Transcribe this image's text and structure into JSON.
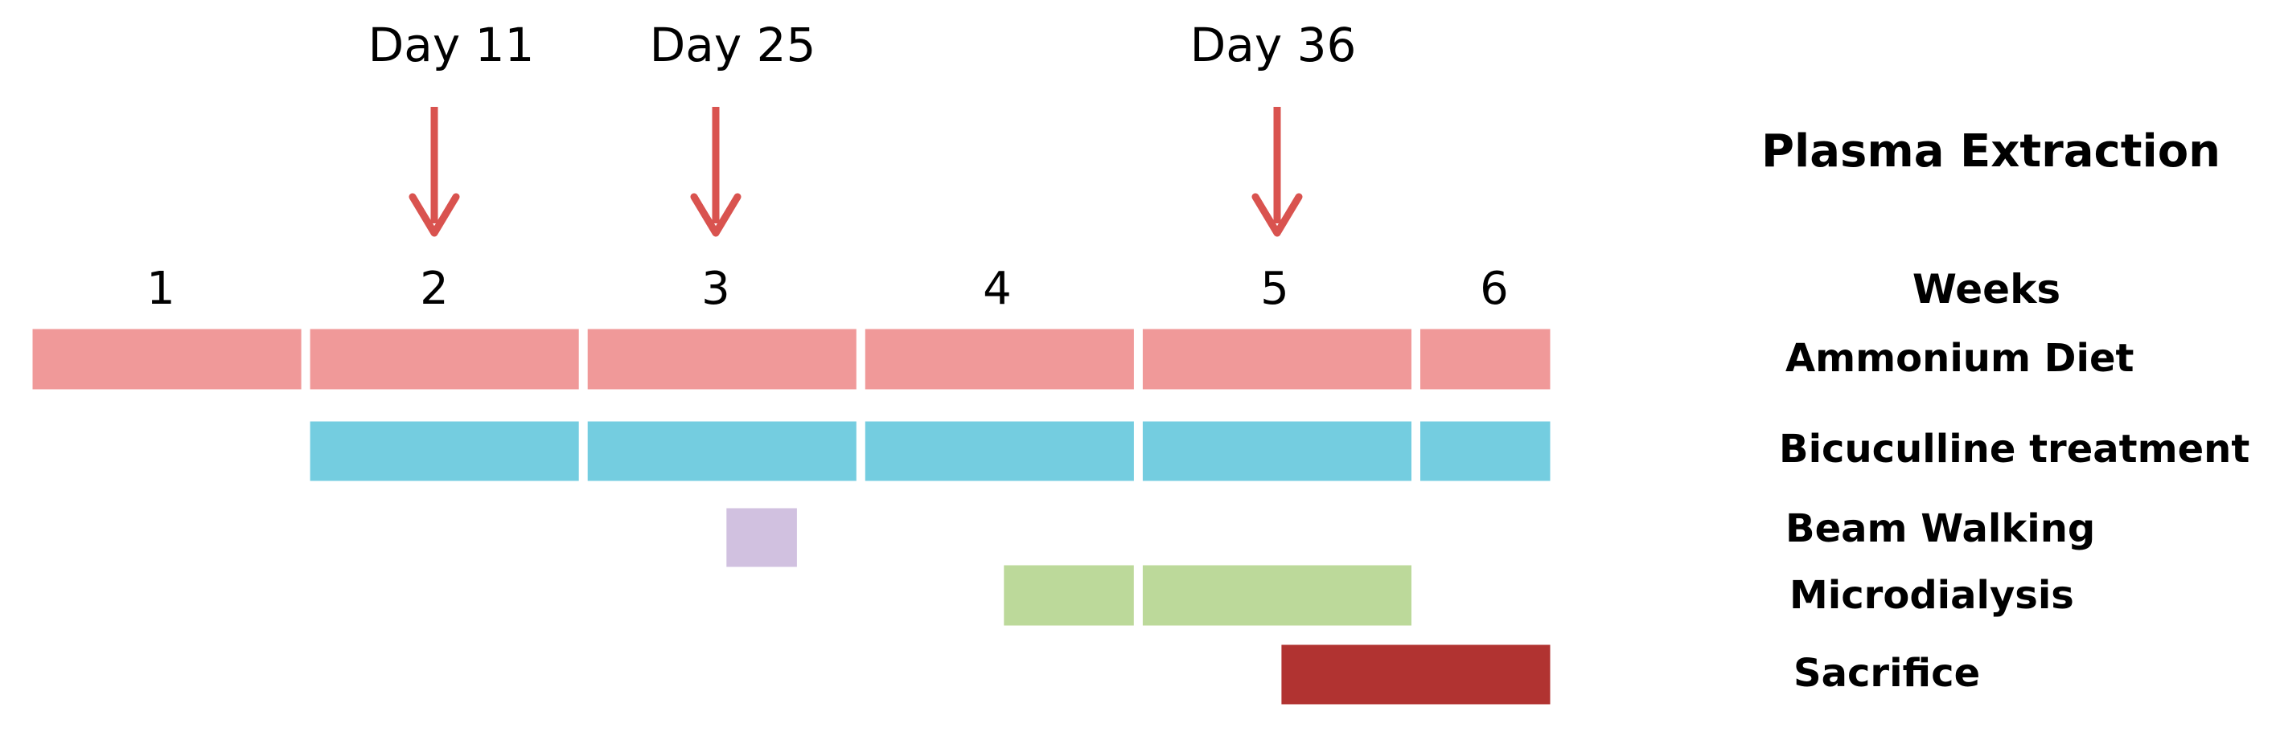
{
  "days": [
    {
      "label": "Day 11",
      "day": 11
    },
    {
      "label": "Day 25",
      "day": 25
    },
    {
      "label": "Day 36",
      "day": 36
    }
  ],
  "weeks": [
    "1",
    "2",
    "3",
    "4",
    "5",
    "6"
  ],
  "labels": {
    "plasma": "Plasma Extraction",
    "weeks": "Weeks",
    "ammonium": "Ammonium Diet",
    "bicuculline": "Bicuculline treatment",
    "beam": "Beam Walking",
    "micro": "Microdialysis",
    "sacrifice": "Sacrifice"
  },
  "colors": {
    "arrow": "#d9534f",
    "ammonium": "#f09999",
    "bicuculline": "#74cde0",
    "beam": "#d1c1e0",
    "micro": "#bcd99a",
    "sacrifice": "#b13331"
  },
  "rows": [
    {
      "key": "ammonium",
      "segments": [
        [
          0,
          7
        ],
        [
          7,
          14
        ],
        [
          14,
          21
        ],
        [
          21,
          28
        ],
        [
          28,
          35
        ],
        [
          35,
          38.5
        ]
      ]
    },
    {
      "key": "bicuculline",
      "segments": [
        [
          7,
          14
        ],
        [
          14,
          21
        ],
        [
          21,
          28
        ],
        [
          28,
          35
        ],
        [
          35,
          38.5
        ]
      ]
    },
    {
      "key": "beam",
      "segments": [
        [
          17.5,
          19.5
        ]
      ]
    },
    {
      "key": "micro",
      "segments": [
        [
          24.5,
          28
        ],
        [
          28,
          35
        ]
      ]
    },
    {
      "key": "sacrifice",
      "segments": [
        [
          31.5,
          38.5
        ]
      ]
    }
  ]
}
